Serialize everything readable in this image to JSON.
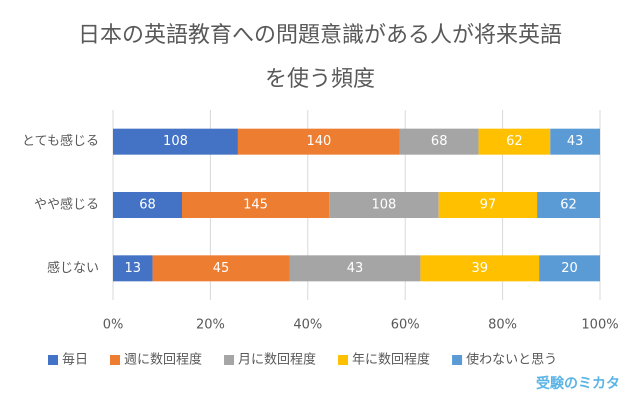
{
  "chart_data": {
    "type": "stacked_bar_100",
    "orientation": "horizontal",
    "title": "日本の英語教育への問題意識がある人が将来英語を使う頻度",
    "categories": [
      "とても感じる",
      "やや感じる",
      "感じない"
    ],
    "series": [
      {
        "name": "毎日",
        "color": "#4472c4",
        "values": [
          108,
          68,
          13
        ]
      },
      {
        "name": "週に数回程度",
        "color": "#ed7d31",
        "values": [
          140,
          145,
          45
        ]
      },
      {
        "name": "月に数回程度",
        "color": "#a5a5a5",
        "values": [
          68,
          108,
          43
        ]
      },
      {
        "name": "年に数回程度",
        "color": "#ffc000",
        "values": [
          62,
          97,
          39
        ]
      },
      {
        "name": "使わないと思う",
        "color": "#5b9bd5",
        "values": [
          43,
          62,
          20
        ]
      }
    ],
    "xlim": [
      0,
      100
    ],
    "xticks": [
      {
        "value": 0,
        "label": "0%"
      },
      {
        "value": 20,
        "label": "20%"
      },
      {
        "value": 40,
        "label": "40%"
      },
      {
        "value": 60,
        "label": "60%"
      },
      {
        "value": 80,
        "label": "80%"
      },
      {
        "value": 100,
        "label": "100%"
      }
    ],
    "grid": true,
    "legend": "bottom",
    "watermark": "受験のミカタ"
  }
}
